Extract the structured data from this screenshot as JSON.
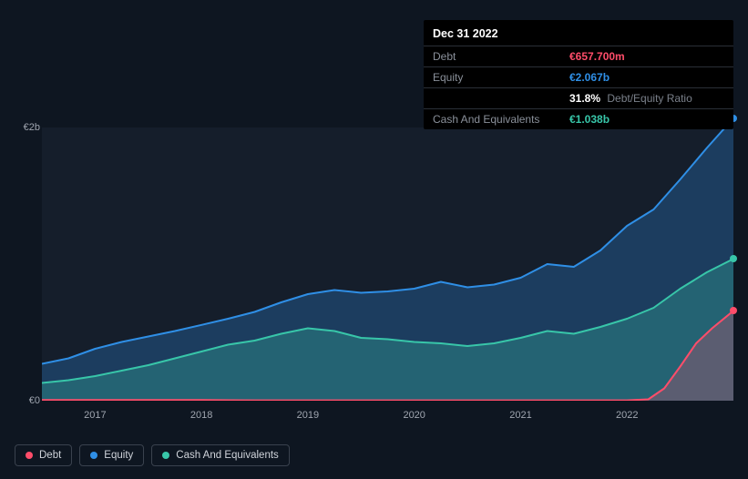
{
  "colors": {
    "background": "#0e1621",
    "plot_bg": "#151e2b",
    "grid": "#2a3240",
    "text": "#a0a6b0",
    "debt": "#ff4d6a",
    "equity": "#2f8fe6",
    "cash": "#38c6a9",
    "tooltip_bg": "#000000"
  },
  "tooltip": {
    "title": "Dec 31 2022",
    "rows": [
      {
        "label": "Debt",
        "value": "€657.700m",
        "color_key": "debt"
      },
      {
        "label": "Equity",
        "value": "€2.067b",
        "color_key": "equity"
      },
      {
        "label": "",
        "value": "31.8%",
        "suffix": "Debt/Equity Ratio",
        "color_key": "white"
      },
      {
        "label": "Cash And Equivalents",
        "value": "€1.038b",
        "color_key": "cash"
      }
    ]
  },
  "chart": {
    "type": "area",
    "y_axis": {
      "min": 0,
      "max": 2000000000,
      "ticks": [
        {
          "value": 0,
          "label": "€0"
        },
        {
          "value": 2000000000,
          "label": "€2b"
        }
      ]
    },
    "x_axis": {
      "start": 2016.5,
      "end": 2023.0,
      "ticks": [
        2017,
        2018,
        2019,
        2020,
        2021,
        2022
      ]
    },
    "series": {
      "equity": {
        "label": "Equity",
        "color_key": "equity",
        "fill_opacity": 0.28,
        "line_width": 2,
        "points": [
          [
            2016.5,
            270000000
          ],
          [
            2016.75,
            310000000
          ],
          [
            2017.0,
            380000000
          ],
          [
            2017.25,
            430000000
          ],
          [
            2017.5,
            470000000
          ],
          [
            2017.75,
            510000000
          ],
          [
            2018.0,
            555000000
          ],
          [
            2018.25,
            600000000
          ],
          [
            2018.5,
            650000000
          ],
          [
            2018.75,
            720000000
          ],
          [
            2019.0,
            780000000
          ],
          [
            2019.25,
            810000000
          ],
          [
            2019.5,
            790000000
          ],
          [
            2019.75,
            800000000
          ],
          [
            2020.0,
            820000000
          ],
          [
            2020.25,
            870000000
          ],
          [
            2020.5,
            830000000
          ],
          [
            2020.75,
            850000000
          ],
          [
            2021.0,
            900000000
          ],
          [
            2021.25,
            1000000000
          ],
          [
            2021.5,
            980000000
          ],
          [
            2021.75,
            1100000000
          ],
          [
            2022.0,
            1280000000
          ],
          [
            2022.25,
            1400000000
          ],
          [
            2022.5,
            1620000000
          ],
          [
            2022.75,
            1850000000
          ],
          [
            2023.0,
            2067000000
          ]
        ]
      },
      "cash": {
        "label": "Cash And Equivalents",
        "color_key": "cash",
        "fill_opacity": 0.28,
        "line_width": 2,
        "points": [
          [
            2016.5,
            130000000
          ],
          [
            2016.75,
            150000000
          ],
          [
            2017.0,
            180000000
          ],
          [
            2017.25,
            220000000
          ],
          [
            2017.5,
            260000000
          ],
          [
            2017.75,
            310000000
          ],
          [
            2018.0,
            360000000
          ],
          [
            2018.25,
            410000000
          ],
          [
            2018.5,
            440000000
          ],
          [
            2018.75,
            490000000
          ],
          [
            2019.0,
            530000000
          ],
          [
            2019.25,
            510000000
          ],
          [
            2019.5,
            460000000
          ],
          [
            2019.75,
            450000000
          ],
          [
            2020.0,
            430000000
          ],
          [
            2020.25,
            420000000
          ],
          [
            2020.5,
            400000000
          ],
          [
            2020.75,
            420000000
          ],
          [
            2021.0,
            460000000
          ],
          [
            2021.25,
            510000000
          ],
          [
            2021.5,
            490000000
          ],
          [
            2021.75,
            540000000
          ],
          [
            2022.0,
            600000000
          ],
          [
            2022.25,
            680000000
          ],
          [
            2022.5,
            820000000
          ],
          [
            2022.75,
            940000000
          ],
          [
            2023.0,
            1038000000
          ]
        ]
      },
      "debt": {
        "label": "Debt",
        "color_key": "debt",
        "fill_opacity": 0.25,
        "line_width": 2,
        "points": [
          [
            2016.5,
            5000000
          ],
          [
            2017.0,
            5000000
          ],
          [
            2017.5,
            5000000
          ],
          [
            2018.0,
            5000000
          ],
          [
            2018.5,
            3000000
          ],
          [
            2019.0,
            3000000
          ],
          [
            2019.5,
            3000000
          ],
          [
            2020.0,
            3000000
          ],
          [
            2020.5,
            3000000
          ],
          [
            2021.0,
            3000000
          ],
          [
            2021.5,
            3000000
          ],
          [
            2022.0,
            3000000
          ],
          [
            2022.2,
            10000000
          ],
          [
            2022.35,
            90000000
          ],
          [
            2022.5,
            250000000
          ],
          [
            2022.65,
            420000000
          ],
          [
            2022.8,
            530000000
          ],
          [
            2023.0,
            657700000
          ]
        ]
      }
    },
    "markers_at_x": 2023.0
  },
  "legend": [
    {
      "label": "Debt",
      "color_key": "debt"
    },
    {
      "label": "Equity",
      "color_key": "equity"
    },
    {
      "label": "Cash And Equivalents",
      "color_key": "cash"
    }
  ]
}
